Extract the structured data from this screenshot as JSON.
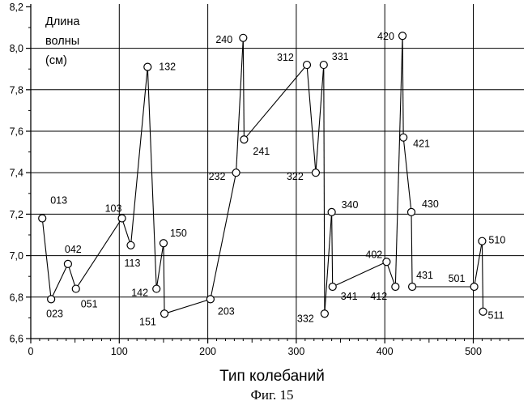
{
  "chart_data": {
    "type": "line",
    "ylabel_lines": [
      "Длина",
      "волны",
      "(см)"
    ],
    "xlabel": "Тип колебаний",
    "caption": "Фиг. 15",
    "xlim": [
      0,
      550
    ],
    "ylim": [
      6.6,
      8.2
    ],
    "x_ticks": [
      0,
      100,
      200,
      300,
      400,
      500
    ],
    "x_tick_labels": [
      "0",
      "100",
      "200",
      "300",
      "400",
      "500"
    ],
    "y_ticks": [
      6.6,
      6.8,
      7.0,
      7.2,
      7.4,
      7.6,
      7.8,
      8.0
    ],
    "y_tick_labels": [
      "6,6",
      "6,8",
      "7,0",
      "7,2",
      "7,4",
      "7,6",
      "7,8",
      "8,0",
      "8,2"
    ],
    "y_tick_values": [
      6.6,
      6.8,
      7.0,
      7.2,
      7.4,
      7.6,
      7.8,
      8.0,
      8.2
    ],
    "grid_x": [
      100,
      200,
      300,
      400,
      500
    ],
    "grid_y": [
      6.8,
      7.0,
      7.2,
      7.4,
      7.6,
      7.8,
      8.0
    ],
    "points": [
      {
        "label": "013",
        "x": 13,
        "y": 7.18
      },
      {
        "label": "023",
        "x": 23,
        "y": 6.79
      },
      {
        "label": "042",
        "x": 42,
        "y": 6.96
      },
      {
        "label": "051",
        "x": 51,
        "y": 6.84
      },
      {
        "label": "103",
        "x": 103,
        "y": 7.18
      },
      {
        "label": "113",
        "x": 113,
        "y": 7.05
      },
      {
        "label": "132",
        "x": 132,
        "y": 7.91
      },
      {
        "label": "142",
        "x": 142,
        "y": 6.84
      },
      {
        "label": "150",
        "x": 150,
        "y": 7.06
      },
      {
        "label": "151",
        "x": 151,
        "y": 6.72
      },
      {
        "label": "203",
        "x": 203,
        "y": 6.79
      },
      {
        "label": "232",
        "x": 232,
        "y": 7.4
      },
      {
        "label": "240",
        "x": 240,
        "y": 8.05
      },
      {
        "label": "241",
        "x": 241,
        "y": 7.56
      },
      {
        "label": "312",
        "x": 312,
        "y": 7.92
      },
      {
        "label": "322",
        "x": 322,
        "y": 7.4
      },
      {
        "label": "331",
        "x": 331,
        "y": 7.92
      },
      {
        "label": "332",
        "x": 332,
        "y": 6.72
      },
      {
        "label": "340",
        "x": 340,
        "y": 7.21
      },
      {
        "label": "341",
        "x": 341,
        "y": 6.85
      },
      {
        "label": "402",
        "x": 402,
        "y": 6.97
      },
      {
        "label": "412",
        "x": 412,
        "y": 6.85
      },
      {
        "label": "420",
        "x": 420,
        "y": 8.06
      },
      {
        "label": "421",
        "x": 421,
        "y": 7.57
      },
      {
        "label": "430",
        "x": 430,
        "y": 7.21
      },
      {
        "label": "431",
        "x": 431,
        "y": 6.85
      },
      {
        "label": "501",
        "x": 501,
        "y": 6.85
      },
      {
        "label": "510",
        "x": 510,
        "y": 7.07
      },
      {
        "label": "511",
        "x": 511,
        "y": 6.73
      }
    ],
    "segments": [
      [
        "013",
        "023"
      ],
      [
        "023",
        "042"
      ],
      [
        "042",
        "051"
      ],
      [
        "051",
        "103"
      ],
      [
        "103",
        "113"
      ],
      [
        "113",
        "132"
      ],
      [
        "132",
        "142"
      ],
      [
        "142",
        "150"
      ],
      [
        "150",
        "151"
      ],
      [
        "151",
        "203"
      ],
      [
        "203",
        "232"
      ],
      [
        "232",
        "240"
      ],
      [
        "240",
        "241"
      ],
      [
        "241",
        "312"
      ],
      [
        "312",
        "322"
      ],
      [
        "322",
        "331"
      ],
      [
        "331",
        "332"
      ],
      [
        "332",
        "340"
      ],
      [
        "340",
        "341"
      ],
      [
        "341",
        "402"
      ],
      [
        "402",
        "412"
      ],
      [
        "412",
        "420"
      ],
      [
        "420",
        "421"
      ],
      [
        "421",
        "430"
      ],
      [
        "430",
        "431"
      ],
      [
        "431",
        "501"
      ],
      [
        "501",
        "510"
      ],
      [
        "510",
        "511"
      ]
    ],
    "grid": true,
    "legend": "none"
  }
}
